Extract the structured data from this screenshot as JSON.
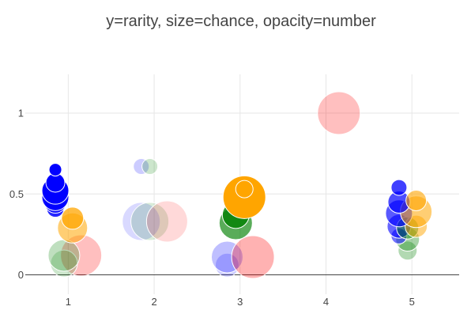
{
  "chart_data": {
    "type": "scatter",
    "title": "y=rarity, size=chance, opacity=number",
    "xlabel": "",
    "ylabel": "",
    "xlim": [
      0.5,
      5.55
    ],
    "ylim": [
      -0.12,
      1.24
    ],
    "x_ticks": [
      1,
      2,
      3,
      4,
      5
    ],
    "x_tick_labels": [
      "1",
      "2",
      "3",
      "4",
      "5"
    ],
    "y_ticks": [
      0,
      0.5,
      1
    ],
    "y_tick_labels": [
      "0",
      "0.5",
      "1"
    ],
    "grid": true,
    "legend": "none",
    "colors": {
      "blue": "#0000ff",
      "orange": "#ffa500",
      "green": "#008000",
      "red": "#ff0000"
    },
    "points": [
      {
        "x": 1.15,
        "y": 0.12,
        "color": "red",
        "chance": 26,
        "opacity": 0.25
      },
      {
        "x": 0.95,
        "y": 0.07,
        "color": "green",
        "chance": 17,
        "opacity": 0.2
      },
      {
        "x": 0.95,
        "y": 0.12,
        "color": "green",
        "chance": 20,
        "opacity": 0.25
      },
      {
        "x": 1.05,
        "y": 0.29,
        "color": "orange",
        "chance": 19,
        "opacity": 0.55
      },
      {
        "x": 1.05,
        "y": 0.35,
        "color": "orange",
        "chance": 14,
        "opacity": 0.75
      },
      {
        "x": 0.85,
        "y": 0.41,
        "color": "blue",
        "chance": 11,
        "opacity": 0.85
      },
      {
        "x": 0.85,
        "y": 0.45,
        "color": "blue",
        "chance": 14,
        "opacity": 0.9
      },
      {
        "x": 0.85,
        "y": 0.48,
        "color": "blue",
        "chance": 17,
        "opacity": 0.95
      },
      {
        "x": 0.85,
        "y": 0.52,
        "color": "blue",
        "chance": 17,
        "opacity": 1.0
      },
      {
        "x": 0.85,
        "y": 0.57,
        "color": "blue",
        "chance": 12,
        "opacity": 1.0
      },
      {
        "x": 0.85,
        "y": 0.65,
        "color": "blue",
        "chance": 8,
        "opacity": 1.0
      },
      {
        "x": 1.85,
        "y": 0.67,
        "color": "blue",
        "chance": 10,
        "opacity": 0.2
      },
      {
        "x": 1.95,
        "y": 0.67,
        "color": "green",
        "chance": 10,
        "opacity": 0.2
      },
      {
        "x": 1.85,
        "y": 0.33,
        "color": "blue",
        "chance": 24,
        "opacity": 0.15
      },
      {
        "x": 1.95,
        "y": 0.33,
        "color": "green",
        "chance": 24,
        "opacity": 0.15
      },
      {
        "x": 2.15,
        "y": 0.33,
        "color": "red",
        "chance": 26,
        "opacity": 0.15
      },
      {
        "x": 2.85,
        "y": 0.06,
        "color": "blue",
        "chance": 15,
        "opacity": 0.2
      },
      {
        "x": 2.85,
        "y": 0.11,
        "color": "blue",
        "chance": 20,
        "opacity": 0.25
      },
      {
        "x": 3.15,
        "y": 0.11,
        "color": "red",
        "chance": 27,
        "opacity": 0.3
      },
      {
        "x": 2.95,
        "y": 0.32,
        "color": "green",
        "chance": 21,
        "opacity": 0.65
      },
      {
        "x": 2.95,
        "y": 0.37,
        "color": "green",
        "chance": 17,
        "opacity": 0.8
      },
      {
        "x": 3.05,
        "y": 0.48,
        "color": "orange",
        "chance": 27,
        "opacity": 1.0
      },
      {
        "x": 3.05,
        "y": 0.53,
        "color": "orange",
        "chance": 11,
        "opacity": 1.0
      },
      {
        "x": 4.15,
        "y": 1.0,
        "color": "red",
        "chance": 27,
        "opacity": 0.25
      },
      {
        "x": 4.95,
        "y": 0.15,
        "color": "green",
        "chance": 12,
        "opacity": 0.3
      },
      {
        "x": 4.95,
        "y": 0.22,
        "color": "green",
        "chance": 15,
        "opacity": 0.35
      },
      {
        "x": 4.85,
        "y": 0.24,
        "color": "blue",
        "chance": 10,
        "opacity": 0.55
      },
      {
        "x": 4.85,
        "y": 0.3,
        "color": "blue",
        "chance": 15,
        "opacity": 0.6
      },
      {
        "x": 4.95,
        "y": 0.29,
        "color": "green",
        "chance": 14,
        "opacity": 0.45
      },
      {
        "x": 5.05,
        "y": 0.3,
        "color": "orange",
        "chance": 14,
        "opacity": 0.5
      },
      {
        "x": 4.85,
        "y": 0.38,
        "color": "blue",
        "chance": 17,
        "opacity": 0.65
      },
      {
        "x": 5.05,
        "y": 0.39,
        "color": "orange",
        "chance": 20,
        "opacity": 0.55
      },
      {
        "x": 4.85,
        "y": 0.45,
        "color": "blue",
        "chance": 14,
        "opacity": 0.7
      },
      {
        "x": 5.05,
        "y": 0.46,
        "color": "orange",
        "chance": 13,
        "opacity": 0.6
      },
      {
        "x": 4.85,
        "y": 0.54,
        "color": "blue",
        "chance": 10,
        "opacity": 0.75
      }
    ]
  }
}
